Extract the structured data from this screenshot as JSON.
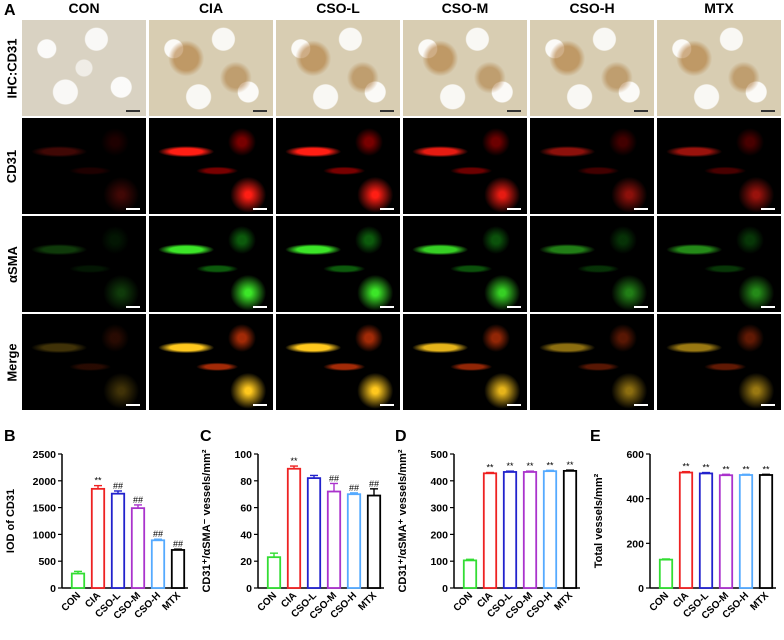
{
  "panel_letters": {
    "A": "A",
    "B": "B",
    "C": "C",
    "D": "D",
    "E": "E"
  },
  "columns": [
    "CON",
    "CIA",
    "CSO-L",
    "CSO-M",
    "CSO-H",
    "MTX"
  ],
  "rows": [
    "IHC:CD31",
    "CD31",
    "αSMA",
    "Merge"
  ],
  "colors": {
    "CON": "#33dd33",
    "CIA": "#ee2222",
    "CSO-L": "#2222cc",
    "CSO-M": "#aa33cc",
    "CSO-H": "#55aaff",
    "MTX": "#000000"
  },
  "chart_data": [
    {
      "type": "bar",
      "categories": [
        "CON",
        "CIA",
        "CSO-L",
        "CSO-M",
        "CSO-H",
        "MTX"
      ],
      "values": [
        270,
        1850,
        1760,
        1490,
        890,
        710
      ],
      "errors": [
        40,
        60,
        50,
        60,
        20,
        15
      ],
      "annotations": [
        "",
        "**",
        "##",
        "##",
        "##",
        "##"
      ],
      "ylabel": "IOD of CD31",
      "ylim": [
        0,
        2500
      ],
      "yticks": [
        0,
        500,
        1000,
        1500,
        2000,
        2500
      ]
    },
    {
      "type": "bar",
      "categories": [
        "CON",
        "CIA",
        "CSO-L",
        "CSO-M",
        "CSO-H",
        "MTX"
      ],
      "values": [
        23,
        89,
        82,
        72,
        70,
        69
      ],
      "errors": [
        3,
        2,
        2,
        6,
        1,
        5
      ],
      "annotations": [
        "",
        "**",
        "",
        "##",
        "##",
        "##"
      ],
      "ylabel": "CD31⁺/αSMA⁻ vessels/mm²",
      "ylim": [
        0,
        100
      ],
      "yticks": [
        0,
        20,
        40,
        60,
        80,
        100
      ]
    },
    {
      "type": "bar",
      "categories": [
        "CON",
        "CIA",
        "CSO-L",
        "CSO-M",
        "CSO-H",
        "MTX"
      ],
      "values": [
        103,
        428,
        433,
        433,
        436,
        437
      ],
      "errors": [
        4,
        3,
        3,
        3,
        3,
        3
      ],
      "annotations": [
        "",
        "**",
        "**",
        "**",
        "**",
        "**"
      ],
      "ylabel": "CD31⁺/αSMA⁺ vessels/mm²",
      "ylim": [
        0,
        500
      ],
      "yticks": [
        0,
        100,
        200,
        300,
        400,
        500
      ]
    },
    {
      "type": "bar",
      "categories": [
        "CON",
        "CIA",
        "CSO-L",
        "CSO-M",
        "CSO-H",
        "MTX"
      ],
      "values": [
        127,
        517,
        513,
        505,
        506,
        506
      ],
      "errors": [
        3,
        4,
        4,
        4,
        3,
        3
      ],
      "annotations": [
        "",
        "**",
        "**",
        "**",
        "**",
        "**"
      ],
      "ylabel": "Total vessels/mm²",
      "ylim": [
        0,
        600
      ],
      "yticks": [
        0,
        200,
        400,
        600
      ]
    }
  ]
}
